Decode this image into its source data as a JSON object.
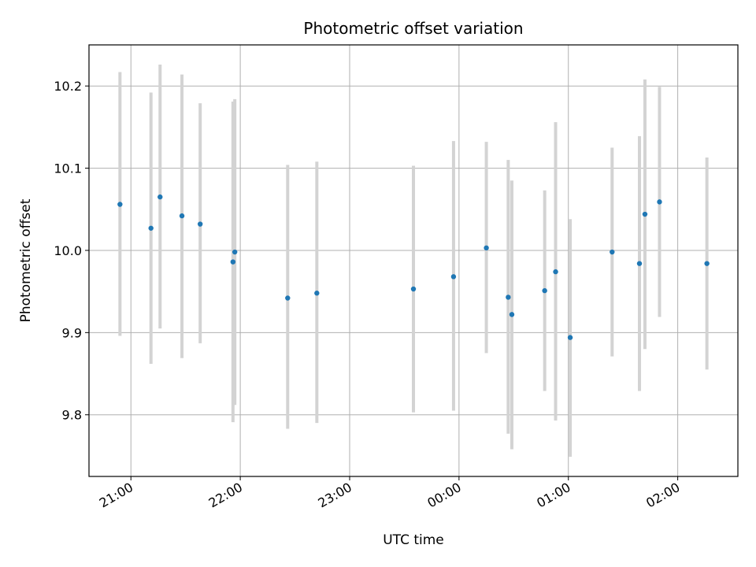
{
  "chart_data": {
    "type": "scatter",
    "title": "Photometric offset variation",
    "xlabel": "UTC time",
    "ylabel": "Photometric offset",
    "x_axis": {
      "range": [
        "20:37",
        "02:33"
      ],
      "ticks": [
        {
          "t": "21:00",
          "label": "21:00"
        },
        {
          "t": "22:00",
          "label": "22:00"
        },
        {
          "t": "23:00",
          "label": "23:00"
        },
        {
          "t": "00:00",
          "label": "00:00"
        },
        {
          "t": "01:00",
          "label": "01:00"
        },
        {
          "t": "02:00",
          "label": "02:00"
        }
      ]
    },
    "y_axis": {
      "range": [
        9.725,
        10.25
      ],
      "ticks": [
        9.8,
        9.9,
        10.0,
        10.1,
        10.2
      ]
    },
    "grid": true,
    "colors": {
      "point": "#1f77b4",
      "errorbar": "#d3d3d3",
      "grid": "#b0b0b0"
    },
    "points": [
      {
        "t": "20:54",
        "y": 10.056,
        "low": 9.896,
        "high": 10.217
      },
      {
        "t": "21:11",
        "y": 10.027,
        "low": 9.862,
        "high": 10.192
      },
      {
        "t": "21:16",
        "y": 10.065,
        "low": 9.905,
        "high": 10.226
      },
      {
        "t": "21:28",
        "y": 10.042,
        "low": 9.869,
        "high": 10.214
      },
      {
        "t": "21:38",
        "y": 10.032,
        "low": 9.887,
        "high": 10.179
      },
      {
        "t": "21:56",
        "y": 9.986,
        "low": 9.791,
        "high": 10.181
      },
      {
        "t": "21:57",
        "y": 9.998,
        "low": 9.812,
        "high": 10.184
      },
      {
        "t": "22:26",
        "y": 9.942,
        "low": 9.783,
        "high": 10.104
      },
      {
        "t": "22:42",
        "y": 9.948,
        "low": 9.79,
        "high": 10.108
      },
      {
        "t": "23:35",
        "y": 9.953,
        "low": 9.803,
        "high": 10.103
      },
      {
        "t": "23:57",
        "y": 9.968,
        "low": 9.805,
        "high": 10.133
      },
      {
        "t": "00:15",
        "y": 10.003,
        "low": 9.875,
        "high": 10.132
      },
      {
        "t": "00:27",
        "y": 9.943,
        "low": 9.777,
        "high": 10.11
      },
      {
        "t": "00:29",
        "y": 9.922,
        "low": 9.758,
        "high": 10.085
      },
      {
        "t": "00:47",
        "y": 9.951,
        "low": 9.829,
        "high": 10.073
      },
      {
        "t": "00:53",
        "y": 9.974,
        "low": 9.793,
        "high": 10.156
      },
      {
        "t": "01:01",
        "y": 9.894,
        "low": 9.749,
        "high": 10.038
      },
      {
        "t": "01:24",
        "y": 9.998,
        "low": 9.871,
        "high": 10.125
      },
      {
        "t": "01:39",
        "y": 9.984,
        "low": 9.829,
        "high": 10.139
      },
      {
        "t": "01:42",
        "y": 10.044,
        "low": 9.88,
        "high": 10.208
      },
      {
        "t": "01:50",
        "y": 10.059,
        "low": 9.919,
        "high": 10.199
      },
      {
        "t": "02:16",
        "y": 9.984,
        "low": 9.855,
        "high": 10.113
      }
    ]
  }
}
